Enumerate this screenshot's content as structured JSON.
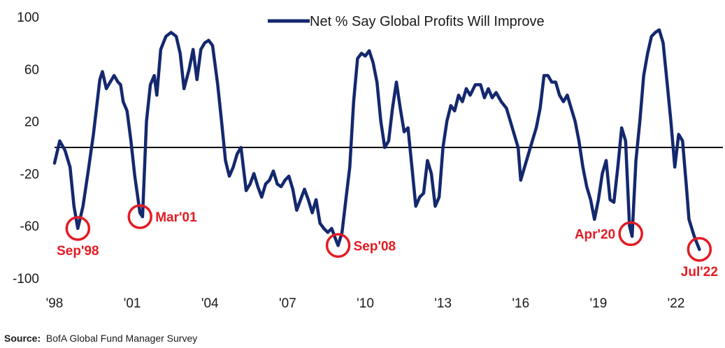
{
  "chart_data": {
    "type": "line",
    "title": "",
    "xlabel": "",
    "ylabel": "",
    "ylim": [
      -100,
      100
    ],
    "xlim": [
      1998.0,
      2023.7
    ],
    "y_ticks": [
      100,
      60,
      20,
      -20,
      -60,
      -100
    ],
    "x_ticks": [
      {
        "label": "'98",
        "value": 1998
      },
      {
        "label": "'01",
        "value": 2001
      },
      {
        "label": "'04",
        "value": 2004
      },
      {
        "label": "'07",
        "value": 2007
      },
      {
        "label": "'10",
        "value": 2010
      },
      {
        "label": "'13",
        "value": 2013
      },
      {
        "label": "'16",
        "value": 2016
      },
      {
        "label": "'19",
        "value": 2019
      },
      {
        "label": "'22",
        "value": 2022
      }
    ],
    "zero_line": 0,
    "legend": {
      "placement": "top-center"
    },
    "series": [
      {
        "name": "Net % Say Global Profits Will Improve",
        "color": "#14286e",
        "points": [
          [
            1998.0,
            -12
          ],
          [
            1998.2,
            5
          ],
          [
            1998.4,
            -2
          ],
          [
            1998.6,
            -15
          ],
          [
            1998.75,
            -45
          ],
          [
            1998.9,
            -62
          ],
          [
            1999.1,
            -45
          ],
          [
            1999.3,
            -18
          ],
          [
            1999.5,
            10
          ],
          [
            1999.65,
            35
          ],
          [
            1999.75,
            52
          ],
          [
            1999.85,
            58
          ],
          [
            2000.0,
            45
          ],
          [
            2000.15,
            50
          ],
          [
            2000.3,
            55
          ],
          [
            2000.45,
            50
          ],
          [
            2000.55,
            48
          ],
          [
            2000.65,
            35
          ],
          [
            2000.8,
            28
          ],
          [
            2000.95,
            5
          ],
          [
            2001.1,
            -22
          ],
          [
            2001.3,
            -50
          ],
          [
            2001.4,
            -53
          ],
          [
            2001.55,
            20
          ],
          [
            2001.7,
            48
          ],
          [
            2001.85,
            55
          ],
          [
            2001.95,
            40
          ],
          [
            2002.1,
            75
          ],
          [
            2002.3,
            85
          ],
          [
            2002.5,
            88
          ],
          [
            2002.7,
            85
          ],
          [
            2002.85,
            72
          ],
          [
            2003.0,
            45
          ],
          [
            2003.2,
            60
          ],
          [
            2003.35,
            75
          ],
          [
            2003.5,
            52
          ],
          [
            2003.65,
            75
          ],
          [
            2003.8,
            80
          ],
          [
            2003.95,
            82
          ],
          [
            2004.1,
            78
          ],
          [
            2004.3,
            48
          ],
          [
            2004.45,
            20
          ],
          [
            2004.6,
            -10
          ],
          [
            2004.75,
            -22
          ],
          [
            2004.9,
            -15
          ],
          [
            2005.05,
            -5
          ],
          [
            2005.2,
            0
          ],
          [
            2005.4,
            -33
          ],
          [
            2005.55,
            -28
          ],
          [
            2005.7,
            -20
          ],
          [
            2005.85,
            -30
          ],
          [
            2006.0,
            -38
          ],
          [
            2006.15,
            -28
          ],
          [
            2006.3,
            -25
          ],
          [
            2006.45,
            -18
          ],
          [
            2006.6,
            -28
          ],
          [
            2006.75,
            -30
          ],
          [
            2006.9,
            -25
          ],
          [
            2007.05,
            -22
          ],
          [
            2007.2,
            -32
          ],
          [
            2007.35,
            -48
          ],
          [
            2007.5,
            -40
          ],
          [
            2007.65,
            -32
          ],
          [
            2007.8,
            -40
          ],
          [
            2007.95,
            -50
          ],
          [
            2008.1,
            -40
          ],
          [
            2008.25,
            -58
          ],
          [
            2008.4,
            -62
          ],
          [
            2008.55,
            -65
          ],
          [
            2008.7,
            -62
          ],
          [
            2008.85,
            -70
          ],
          [
            2008.95,
            -75
          ],
          [
            2009.1,
            -65
          ],
          [
            2009.25,
            -40
          ],
          [
            2009.4,
            -15
          ],
          [
            2009.55,
            35
          ],
          [
            2009.7,
            68
          ],
          [
            2009.85,
            72
          ],
          [
            2010.0,
            70
          ],
          [
            2010.15,
            74
          ],
          [
            2010.3,
            65
          ],
          [
            2010.45,
            50
          ],
          [
            2010.6,
            20
          ],
          [
            2010.75,
            0
          ],
          [
            2010.9,
            5
          ],
          [
            2011.05,
            30
          ],
          [
            2011.2,
            50
          ],
          [
            2011.35,
            30
          ],
          [
            2011.5,
            12
          ],
          [
            2011.65,
            15
          ],
          [
            2011.8,
            -15
          ],
          [
            2011.95,
            -45
          ],
          [
            2012.1,
            -38
          ],
          [
            2012.25,
            -35
          ],
          [
            2012.4,
            -10
          ],
          [
            2012.55,
            -20
          ],
          [
            2012.7,
            -45
          ],
          [
            2012.85,
            -38
          ],
          [
            2013.0,
            0
          ],
          [
            2013.15,
            20
          ],
          [
            2013.3,
            32
          ],
          [
            2013.45,
            28
          ],
          [
            2013.6,
            40
          ],
          [
            2013.75,
            35
          ],
          [
            2013.9,
            45
          ],
          [
            2014.05,
            40
          ],
          [
            2014.25,
            48
          ],
          [
            2014.45,
            48
          ],
          [
            2014.6,
            38
          ],
          [
            2014.75,
            45
          ],
          [
            2014.9,
            38
          ],
          [
            2015.05,
            42
          ],
          [
            2015.25,
            35
          ],
          [
            2015.45,
            30
          ],
          [
            2015.6,
            20
          ],
          [
            2015.75,
            10
          ],
          [
            2015.9,
            0
          ],
          [
            2016.0,
            -25
          ],
          [
            2016.15,
            -15
          ],
          [
            2016.3,
            -5
          ],
          [
            2016.45,
            5
          ],
          [
            2016.6,
            15
          ],
          [
            2016.75,
            30
          ],
          [
            2016.9,
            55
          ],
          [
            2017.05,
            55
          ],
          [
            2017.2,
            50
          ],
          [
            2017.35,
            50
          ],
          [
            2017.5,
            40
          ],
          [
            2017.65,
            35
          ],
          [
            2017.8,
            40
          ],
          [
            2017.95,
            30
          ],
          [
            2018.1,
            20
          ],
          [
            2018.25,
            5
          ],
          [
            2018.4,
            -15
          ],
          [
            2018.55,
            -30
          ],
          [
            2018.7,
            -40
          ],
          [
            2018.85,
            -55
          ],
          [
            2019.0,
            -40
          ],
          [
            2019.15,
            -20
          ],
          [
            2019.3,
            -10
          ],
          [
            2019.45,
            -40
          ],
          [
            2019.6,
            -42
          ],
          [
            2019.75,
            -15
          ],
          [
            2019.9,
            15
          ],
          [
            2020.05,
            5
          ],
          [
            2020.2,
            -60
          ],
          [
            2020.3,
            -68
          ],
          [
            2020.45,
            -10
          ],
          [
            2020.6,
            20
          ],
          [
            2020.75,
            55
          ],
          [
            2020.9,
            72
          ],
          [
            2021.05,
            85
          ],
          [
            2021.2,
            88
          ],
          [
            2021.35,
            90
          ],
          [
            2021.5,
            80
          ],
          [
            2021.65,
            50
          ],
          [
            2021.8,
            20
          ],
          [
            2021.95,
            -15
          ],
          [
            2022.1,
            10
          ],
          [
            2022.25,
            5
          ],
          [
            2022.4,
            -30
          ],
          [
            2022.5,
            -55
          ],
          [
            2022.7,
            -68
          ],
          [
            2022.9,
            -78
          ]
        ]
      }
    ],
    "annotations": [
      {
        "label": "Sep'98",
        "x": 1998.9,
        "y": -62,
        "text_pos": "below"
      },
      {
        "label": "Mar'01",
        "x": 2001.3,
        "y": -53,
        "text_pos": "right"
      },
      {
        "label": "Sep'08",
        "x": 2008.95,
        "y": -75,
        "text_pos": "right"
      },
      {
        "label": "Apr'20",
        "x": 2020.25,
        "y": -66,
        "text_pos": "left"
      },
      {
        "label": "Jul'22",
        "x": 2022.9,
        "y": -78,
        "text_pos": "below"
      }
    ],
    "annotation_color": "#e31b23"
  },
  "source": {
    "label": "Source:",
    "text": "BofA Global Fund Manager Survey"
  }
}
